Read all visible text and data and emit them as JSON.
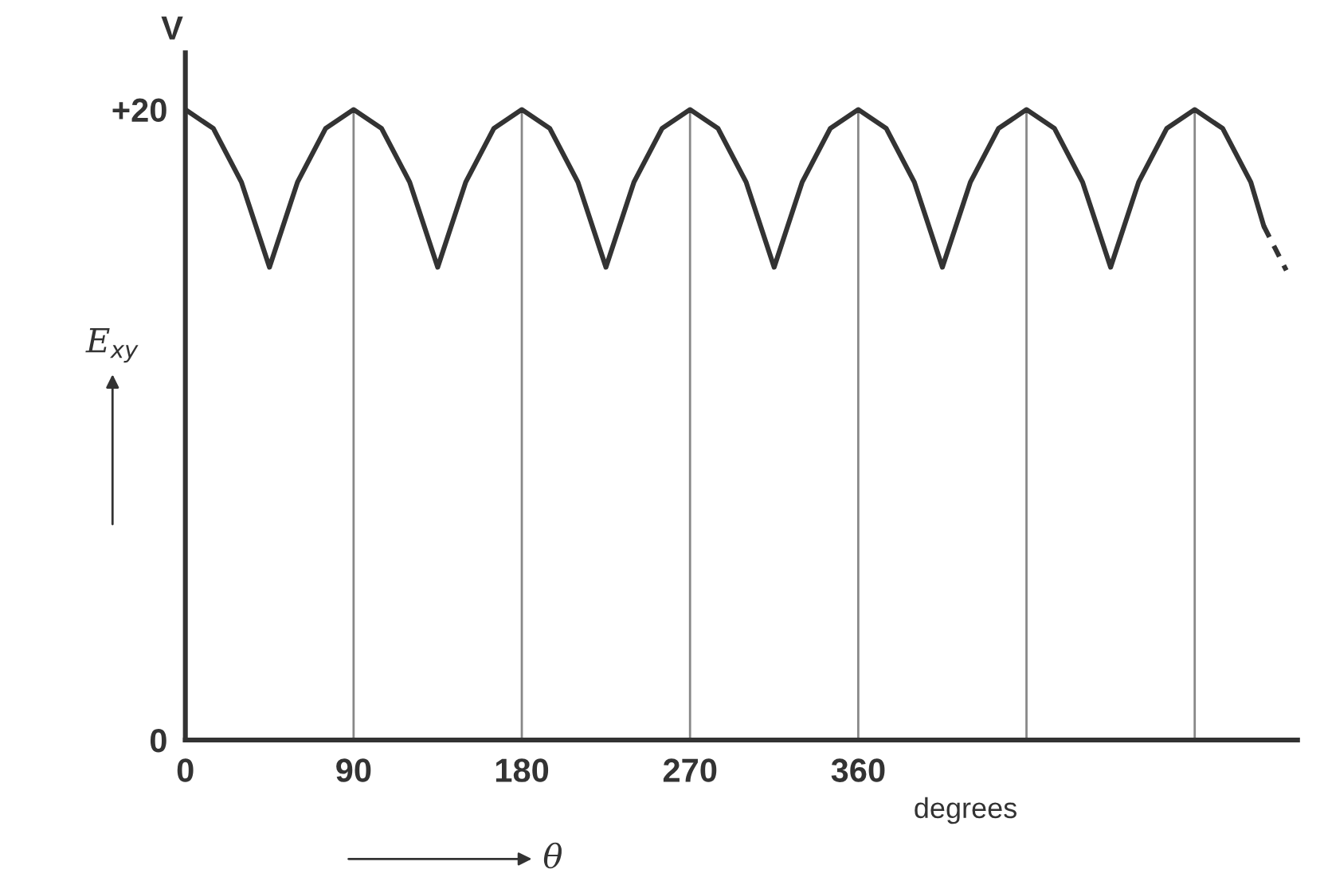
{
  "chart_data": {
    "type": "line",
    "xlabel": "θ",
    "ylabel": "E$_{xy}$",
    "annotations": [
      "V",
      "degrees"
    ],
    "series": [
      {
        "color": "#333333",
        "line_style": "solid",
        "x": [
          0,
          15,
          30,
          45,
          60,
          75,
          90,
          105,
          120,
          135,
          150,
          165,
          180,
          195,
          210,
          225,
          240,
          255,
          270,
          285,
          300,
          315,
          330,
          345,
          360,
          375,
          390,
          405,
          420,
          435,
          450,
          465,
          480,
          495,
          510,
          525,
          540,
          555,
          570,
          577
        ],
        "values": [
          20,
          19.4,
          17.7,
          15,
          17.7,
          19.4,
          20,
          19.4,
          17.7,
          15,
          17.7,
          19.4,
          20,
          19.4,
          17.7,
          15,
          17.7,
          19.4,
          20,
          19.4,
          17.7,
          15,
          17.7,
          19.4,
          20,
          19.4,
          17.7,
          15,
          17.7,
          19.4,
          20,
          19.4,
          17.7,
          15,
          17.7,
          19.4,
          20,
          19.4,
          17.7,
          16.3
        ]
      },
      {
        "color": "#333333",
        "line_style": "dashed",
        "x": [
          577,
          583,
          589
        ],
        "values": [
          16.3,
          15.6,
          14.9
        ]
      }
    ],
    "ref_lines": [
      {
        "axis": "x",
        "value": 90,
        "color": "#888888"
      },
      {
        "axis": "x",
        "value": 180,
        "color": "#888888"
      },
      {
        "axis": "x",
        "value": 270,
        "color": "#888888"
      },
      {
        "axis": "x",
        "value": 360,
        "color": "#888888"
      },
      {
        "axis": "x",
        "value": 450,
        "color": "#888888"
      },
      {
        "axis": "x",
        "value": 540,
        "color": "#888888"
      }
    ],
    "xlim": [
      0,
      595
    ],
    "ylim": [
      0,
      21.8
    ],
    "xticks": [
      0,
      90,
      180,
      270,
      360
    ],
    "yticks": [
      0,
      {
        "value": 20,
        "label": "+20"
      }
    ],
    "grid": false,
    "legend": false,
    "marker": "none"
  }
}
